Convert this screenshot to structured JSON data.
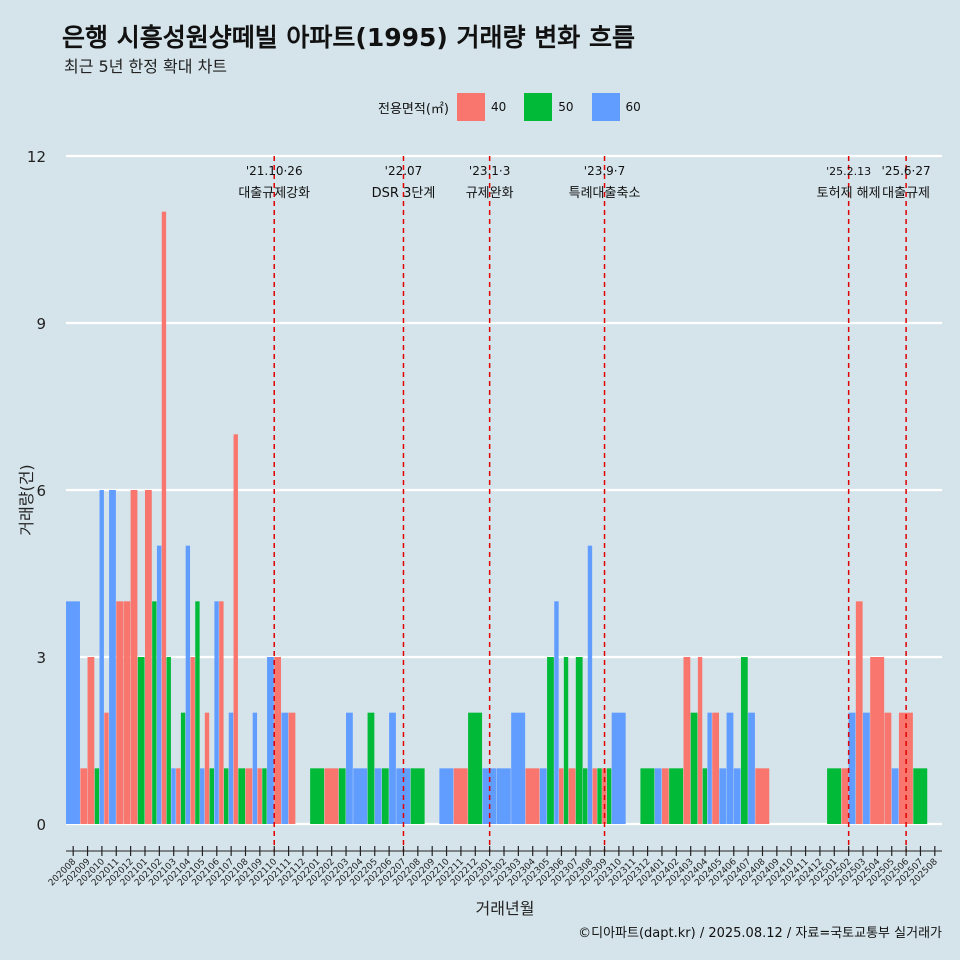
{
  "title": "은행 시흥성원샹떼빌 아파트(1995) 거래량 변화 흐름",
  "subtitle": "최근 5년 한정 확대 차트",
  "caption": "©디아파트(dapt.kr) / 2025.08.12 / 자료=국토교통부 실거래가",
  "colors": {
    "40": "#f8766d",
    "50": "#00ba38",
    "60": "#619cff",
    "background": "#d5e4eb",
    "grid": "#ffffff",
    "event_line": "#e00000"
  },
  "chart_data": {
    "type": "bar",
    "xlabel": "거래년월",
    "ylabel": "거래량(건)",
    "ylim": [
      0,
      12
    ],
    "yticks": [
      0,
      3,
      6,
      9,
      12
    ],
    "legend": {
      "title": "전용면적(㎡)",
      "position": "top",
      "entries": [
        "40",
        "50",
        "60"
      ]
    },
    "categories": [
      "202008",
      "202009",
      "202010",
      "202011",
      "202012",
      "202101",
      "202102",
      "202103",
      "202104",
      "202105",
      "202106",
      "202107",
      "202108",
      "202109",
      "202110",
      "202111",
      "202112",
      "202201",
      "202202",
      "202203",
      "202204",
      "202205",
      "202206",
      "202207",
      "202208",
      "202209",
      "202210",
      "202211",
      "202212",
      "202301",
      "202302",
      "202303",
      "202304",
      "202305",
      "202306",
      "202307",
      "202308",
      "202309",
      "202310",
      "202311",
      "202312",
      "202401",
      "202402",
      "202403",
      "202404",
      "202405",
      "202406",
      "202407",
      "202408",
      "202409",
      "202410",
      "202411",
      "202412",
      "202501",
      "202502",
      "202503",
      "202504",
      "202505",
      "202506",
      "202507",
      "202508"
    ],
    "bars": [
      {
        "month": "202008",
        "series": "60",
        "value": 4
      },
      {
        "month": "202009",
        "series": "40",
        "value": 1
      },
      {
        "month": "202009",
        "series": "40",
        "value": 3
      },
      {
        "month": "202010",
        "series": "50",
        "value": 1
      },
      {
        "month": "202010",
        "series": "60",
        "value": 6
      },
      {
        "month": "202010",
        "series": "40",
        "value": 2
      },
      {
        "month": "202011",
        "series": "60",
        "value": 6
      },
      {
        "month": "202011",
        "series": "40",
        "value": 4
      },
      {
        "month": "202012",
        "series": "40",
        "value": 4
      },
      {
        "month": "202012",
        "series": "40",
        "value": 6
      },
      {
        "month": "202101",
        "series": "50",
        "value": 3
      },
      {
        "month": "202101",
        "series": "40",
        "value": 6
      },
      {
        "month": "202102",
        "series": "50",
        "value": 4
      },
      {
        "month": "202102",
        "series": "60",
        "value": 5
      },
      {
        "month": "202102",
        "series": "40",
        "value": 11
      },
      {
        "month": "202103",
        "series": "50",
        "value": 3
      },
      {
        "month": "202103",
        "series": "60",
        "value": 1
      },
      {
        "month": "202103",
        "series": "40",
        "value": 1
      },
      {
        "month": "202104",
        "series": "50",
        "value": 2
      },
      {
        "month": "202104",
        "series": "60",
        "value": 5
      },
      {
        "month": "202104",
        "series": "40",
        "value": 3
      },
      {
        "month": "202105",
        "series": "50",
        "value": 4
      },
      {
        "month": "202105",
        "series": "60",
        "value": 1
      },
      {
        "month": "202105",
        "series": "40",
        "value": 2
      },
      {
        "month": "202106",
        "series": "50",
        "value": 1
      },
      {
        "month": "202106",
        "series": "60",
        "value": 4
      },
      {
        "month": "202106",
        "series": "40",
        "value": 4
      },
      {
        "month": "202107",
        "series": "50",
        "value": 1
      },
      {
        "month": "202107",
        "series": "60",
        "value": 2
      },
      {
        "month": "202107",
        "series": "40",
        "value": 7
      },
      {
        "month": "202108",
        "series": "50",
        "value": 1
      },
      {
        "month": "202108",
        "series": "40",
        "value": 1
      },
      {
        "month": "202109",
        "series": "60",
        "value": 2
      },
      {
        "month": "202109",
        "series": "40",
        "value": 1
      },
      {
        "month": "202109",
        "series": "50",
        "value": 1
      },
      {
        "month": "202110",
        "series": "60",
        "value": 3
      },
      {
        "month": "202110",
        "series": "40",
        "value": 3
      },
      {
        "month": "202111",
        "series": "60",
        "value": 2
      },
      {
        "month": "202111",
        "series": "40",
        "value": 2
      },
      {
        "month": "202201",
        "series": "50",
        "value": 1
      },
      {
        "month": "202202",
        "series": "40",
        "value": 1
      },
      {
        "month": "202203",
        "series": "50",
        "value": 1
      },
      {
        "month": "202203",
        "series": "60",
        "value": 2
      },
      {
        "month": "202204",
        "series": "60",
        "value": 1
      },
      {
        "month": "202205",
        "series": "50",
        "value": 2
      },
      {
        "month": "202205",
        "series": "60",
        "value": 1
      },
      {
        "month": "202206",
        "series": "50",
        "value": 1
      },
      {
        "month": "202206",
        "series": "60",
        "value": 2
      },
      {
        "month": "202207",
        "series": "60",
        "value": 1
      },
      {
        "month": "202208",
        "series": "50",
        "value": 1
      },
      {
        "month": "202210",
        "series": "60",
        "value": 1
      },
      {
        "month": "202211",
        "series": "40",
        "value": 1
      },
      {
        "month": "202212",
        "series": "50",
        "value": 2
      },
      {
        "month": "202301",
        "series": "60",
        "value": 1
      },
      {
        "month": "202302",
        "series": "60",
        "value": 1
      },
      {
        "month": "202303",
        "series": "60",
        "value": 2
      },
      {
        "month": "202304",
        "series": "40",
        "value": 1
      },
      {
        "month": "202305",
        "series": "60",
        "value": 1
      },
      {
        "month": "202305",
        "series": "50",
        "value": 3
      },
      {
        "month": "202306",
        "series": "60",
        "value": 4
      },
      {
        "month": "202306",
        "series": "40",
        "value": 1
      },
      {
        "month": "202306",
        "series": "50",
        "value": 3
      },
      {
        "month": "202307",
        "series": "40",
        "value": 1
      },
      {
        "month": "202307",
        "series": "50",
        "value": 3
      },
      {
        "month": "202308",
        "series": "50",
        "value": 1
      },
      {
        "month": "202308",
        "series": "60",
        "value": 5
      },
      {
        "month": "202308",
        "series": "40",
        "value": 1
      },
      {
        "month": "202309",
        "series": "50",
        "value": 1
      },
      {
        "month": "202309",
        "series": "40",
        "value": 1
      },
      {
        "month": "202309",
        "series": "50",
        "value": 1
      },
      {
        "month": "202310",
        "series": "60",
        "value": 2
      },
      {
        "month": "202312",
        "series": "50",
        "value": 1
      },
      {
        "month": "202401",
        "series": "60",
        "value": 1
      },
      {
        "month": "202401",
        "series": "40",
        "value": 1
      },
      {
        "month": "202402",
        "series": "50",
        "value": 1
      },
      {
        "month": "202403",
        "series": "40",
        "value": 3
      },
      {
        "month": "202403",
        "series": "50",
        "value": 2
      },
      {
        "month": "202404",
        "series": "40",
        "value": 3
      },
      {
        "month": "202404",
        "series": "50",
        "value": 1
      },
      {
        "month": "202404",
        "series": "60",
        "value": 2
      },
      {
        "month": "202405",
        "series": "40",
        "value": 2
      },
      {
        "month": "202405",
        "series": "60",
        "value": 1
      },
      {
        "month": "202406",
        "series": "60",
        "value": 2
      },
      {
        "month": "202406",
        "series": "60",
        "value": 1
      },
      {
        "month": "202407",
        "series": "50",
        "value": 3
      },
      {
        "month": "202407",
        "series": "60",
        "value": 2
      },
      {
        "month": "202408",
        "series": "40",
        "value": 1
      },
      {
        "month": "202501",
        "series": "50",
        "value": 1
      },
      {
        "month": "202502",
        "series": "40",
        "value": 1
      },
      {
        "month": "202502",
        "series": "60",
        "value": 2
      },
      {
        "month": "202503",
        "series": "40",
        "value": 4
      },
      {
        "month": "202503",
        "series": "60",
        "value": 2
      },
      {
        "month": "202504",
        "series": "40",
        "value": 3
      },
      {
        "month": "202505",
        "series": "40",
        "value": 2
      },
      {
        "month": "202505",
        "series": "60",
        "value": 1
      },
      {
        "month": "202506",
        "series": "40",
        "value": 2
      },
      {
        "month": "202507",
        "series": "50",
        "value": 1
      }
    ],
    "annotations": [
      {
        "month": "202110",
        "date": "'21.10·26",
        "text": "대출규제강화"
      },
      {
        "month": "202207",
        "date": "'22.07",
        "text": "DSR 3단계"
      },
      {
        "month": "202301",
        "date": "'23.1·3",
        "text": "규제완화"
      },
      {
        "month": "202309",
        "date": "'23.9·7",
        "text": "특례대출축소"
      },
      {
        "month": "202502",
        "date": "'25.2.13",
        "text": "토허제 해제"
      },
      {
        "month": "202506",
        "date": "'25.6·27",
        "text": "대출규제"
      }
    ]
  }
}
